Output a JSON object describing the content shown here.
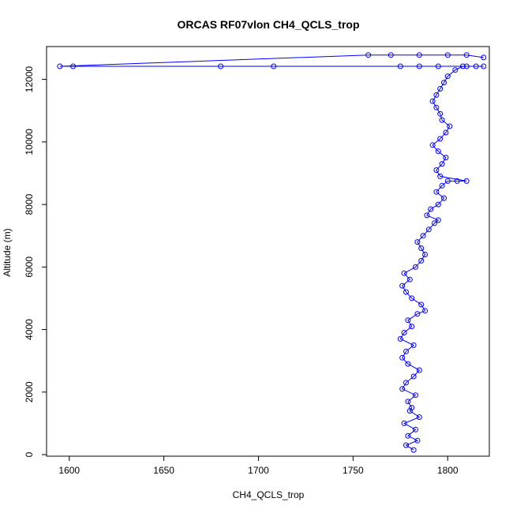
{
  "chart_data": {
    "type": "scatter",
    "title": "ORCAS RF07vlon CH4_QCLS_trop",
    "xlabel": "CH4_QCLS_trop",
    "ylabel": "Altitude (m)",
    "xlim": [
      1588,
      1822
    ],
    "ylim": [
      -50,
      13050
    ],
    "xticks": [
      1600,
      1650,
      1700,
      1750,
      1800
    ],
    "yticks": [
      0,
      2000,
      4000,
      6000,
      8000,
      10000,
      12000
    ],
    "connected": true,
    "grid": false,
    "color": "#0000ff",
    "series": [
      {
        "values": [
          [
            1782,
            150
          ],
          [
            1778,
            300
          ],
          [
            1784,
            450
          ],
          [
            1779,
            600
          ],
          [
            1783,
            800
          ],
          [
            1777,
            1000
          ],
          [
            1785,
            1200
          ],
          [
            1780,
            1400
          ],
          [
            1781,
            1500
          ],
          [
            1779,
            1700
          ],
          [
            1783,
            1900
          ],
          [
            1776,
            2100
          ],
          [
            1778,
            2300
          ],
          [
            1782,
            2500
          ],
          [
            1785,
            2700
          ],
          [
            1779,
            2900
          ],
          [
            1776,
            3100
          ],
          [
            1778,
            3300
          ],
          [
            1782,
            3500
          ],
          [
            1775,
            3700
          ],
          [
            1777,
            3900
          ],
          [
            1781,
            4100
          ],
          [
            1779,
            4300
          ],
          [
            1784,
            4500
          ],
          [
            1788,
            4600
          ],
          [
            1786,
            4800
          ],
          [
            1781,
            5000
          ],
          [
            1778,
            5200
          ],
          [
            1776,
            5400
          ],
          [
            1780,
            5600
          ],
          [
            1777,
            5800
          ],
          [
            1783,
            6000
          ],
          [
            1786,
            6200
          ],
          [
            1788,
            6400
          ],
          [
            1786,
            6600
          ],
          [
            1784,
            6800
          ],
          [
            1787,
            7000
          ],
          [
            1790,
            7200
          ],
          [
            1793,
            7400
          ],
          [
            1795,
            7500
          ],
          [
            1789,
            7650
          ],
          [
            1791,
            7850
          ],
          [
            1795,
            8000
          ],
          [
            1798,
            8200
          ],
          [
            1794,
            8400
          ],
          [
            1797,
            8600
          ],
          [
            1800,
            8750
          ],
          [
            1805,
            8750
          ],
          [
            1810,
            8750
          ],
          [
            1796,
            8900
          ],
          [
            1794,
            9100
          ],
          [
            1797,
            9300
          ],
          [
            1799,
            9500
          ],
          [
            1795,
            9700
          ],
          [
            1792,
            9900
          ],
          [
            1796,
            10100
          ],
          [
            1799,
            10300
          ],
          [
            1801,
            10500
          ],
          [
            1797,
            10700
          ],
          [
            1796,
            10900
          ],
          [
            1794,
            11100
          ],
          [
            1792,
            11300
          ],
          [
            1794,
            11500
          ],
          [
            1796,
            11700
          ],
          [
            1798,
            11900
          ],
          [
            1800,
            12100
          ],
          [
            1804,
            12300
          ],
          [
            1808,
            12420
          ],
          [
            1815,
            12420
          ],
          [
            1819,
            12420
          ],
          [
            1810,
            12420
          ],
          [
            1795,
            12420
          ],
          [
            1785,
            12420
          ],
          [
            1775,
            12420
          ],
          [
            1708,
            12420
          ],
          [
            1680,
            12420
          ],
          [
            1602,
            12420
          ],
          [
            1595,
            12420
          ],
          [
            1758,
            12780
          ],
          [
            1770,
            12780
          ],
          [
            1785,
            12780
          ],
          [
            1800,
            12780
          ],
          [
            1810,
            12780
          ],
          [
            1819,
            12700
          ]
        ]
      }
    ]
  }
}
